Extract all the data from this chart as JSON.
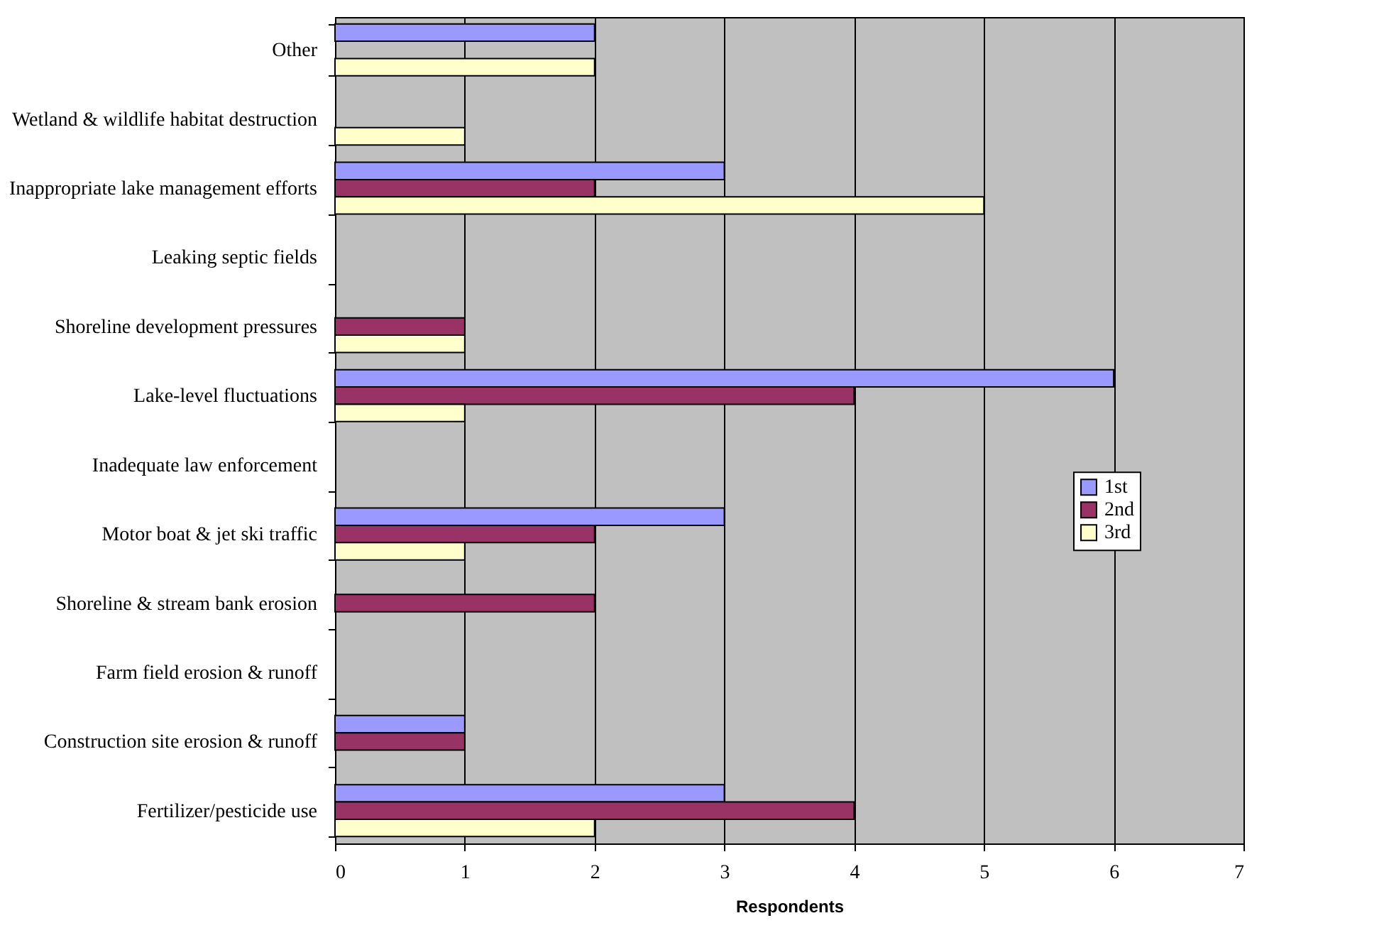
{
  "chart_data": {
    "type": "bar",
    "orientation": "horizontal",
    "xlabel": "Respondents",
    "categories": [
      "Other",
      "Wetland & wildlife habitat destruction",
      "Inappropriate lake management efforts",
      "Leaking septic fields",
      "Shoreline development pressures",
      "Lake-level fluctuations",
      "Inadequate law enforcement",
      "Motor boat & jet ski traffic",
      "Shoreline & stream bank erosion",
      "Farm field erosion & runoff",
      "Construction site erosion & runoff",
      "Fertilizer/pesticide use"
    ],
    "series": [
      {
        "name": "1st",
        "color": "#9999ff",
        "values": [
          2,
          null,
          3,
          null,
          null,
          6,
          null,
          3,
          null,
          null,
          1,
          3
        ]
      },
      {
        "name": "2nd",
        "color": "#993366",
        "values": [
          null,
          null,
          2,
          null,
          1,
          4,
          null,
          2,
          2,
          null,
          1,
          4
        ]
      },
      {
        "name": "3rd",
        "color": "#ffffcc",
        "values": [
          2,
          1,
          5,
          null,
          1,
          1,
          null,
          1,
          null,
          null,
          null,
          2
        ]
      }
    ],
    "xlim": [
      0,
      7
    ],
    "xticks": [
      0,
      1,
      2,
      3,
      4,
      5,
      6,
      7
    ],
    "grid": "x",
    "legend": "right"
  }
}
